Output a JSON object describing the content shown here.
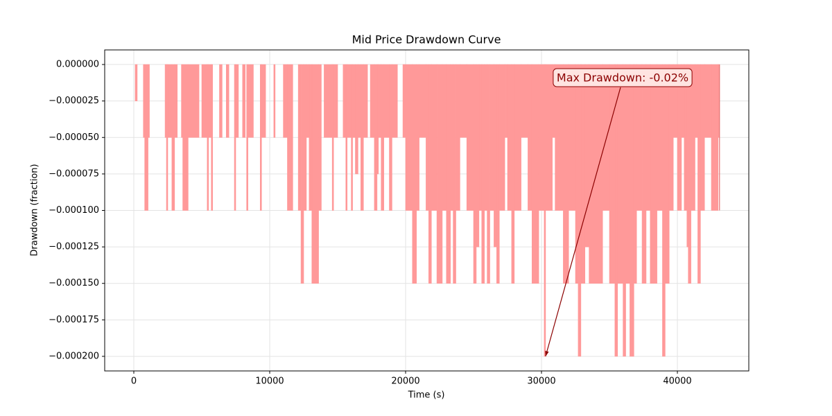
{
  "chart_data": {
    "type": "area",
    "step": "post",
    "title": "Mid Price Drawdown Curve",
    "xlabel": "Time (s)",
    "ylabel": "Drawdown (fraction)",
    "color": "#ff9999",
    "grid": true,
    "xlim": [
      -2143,
      45255
    ],
    "ylim": [
      -0.00021,
      1e-05
    ],
    "xticks": [
      0,
      10000,
      20000,
      30000,
      40000
    ],
    "yticks": [
      {
        "value": 0,
        "label": "0.000000"
      },
      {
        "value": -2.5e-05,
        "label": "−0.000025"
      },
      {
        "value": -5e-05,
        "label": "−0.000050"
      },
      {
        "value": -7.5e-05,
        "label": "−0.000075"
      },
      {
        "value": -0.0001,
        "label": "−0.000100"
      },
      {
        "value": -0.000125,
        "label": "−0.000125"
      },
      {
        "value": -0.00015,
        "label": "−0.000150"
      },
      {
        "value": -0.000175,
        "label": "−0.000175"
      },
      {
        "value": -0.0002,
        "label": "−0.000200"
      }
    ],
    "annotation": {
      "text": "Max Drawdown: -0.02%",
      "x": 30300,
      "y": -0.0002
    },
    "x": [
      0,
      100,
      250,
      700,
      800,
      1050,
      1150,
      2300,
      2400,
      2500,
      2800,
      3000,
      3200,
      3500,
      3600,
      4000,
      4800,
      5000,
      5400,
      5500,
      5700,
      5800,
      6300,
      6500,
      6800,
      7000,
      7400,
      7500,
      7700,
      8000,
      8200,
      8300,
      8400,
      8800,
      9300,
      9400,
      9700,
      10300,
      10400,
      11000,
      11300,
      11700,
      12100,
      12300,
      12500,
      12700,
      12900,
      13100,
      13600,
      13800,
      14000,
      14600,
      14700,
      15000,
      15400,
      15600,
      15700,
      16000,
      16100,
      16300,
      16500,
      16700,
      16900,
      17200,
      17400,
      17700,
      17900,
      18000,
      18200,
      18400,
      18800,
      19000,
      19400,
      19800,
      20000,
      20500,
      20800,
      21000,
      21500,
      21700,
      21900,
      22300,
      22700,
      23000,
      23300,
      23500,
      23700,
      24000,
      24500,
      25000,
      25200,
      25400,
      25600,
      25800,
      26000,
      26200,
      26500,
      26700,
      26900,
      27300,
      27500,
      27800,
      28000,
      28500,
      29000,
      29300,
      29800,
      30200,
      30300,
      30800,
      31000,
      31600,
      32000,
      32500,
      32700,
      32900,
      33200,
      33500,
      34500,
      35000,
      35400,
      35600,
      36000,
      36200,
      36500,
      36800,
      37000,
      37400,
      37700,
      38000,
      38500,
      38900,
      39100,
      39400,
      39700,
      40000,
      40300,
      40500,
      40700,
      40800,
      41000,
      41300,
      41500,
      41700,
      42000,
      42500,
      43000,
      43100
    ],
    "values": [
      0,
      -2.5e-05,
      0,
      -5e-05,
      -0.0001,
      -5e-05,
      0,
      -5e-05,
      -0.0001,
      -5e-05,
      -0.0001,
      -5e-05,
      0,
      -5e-05,
      -0.0001,
      -5e-05,
      0,
      -5e-05,
      -0.0001,
      -5e-05,
      -0.0001,
      0,
      -5e-05,
      0,
      -5e-05,
      0,
      -0.0001,
      -5e-05,
      0,
      -5e-05,
      0,
      -0.0001,
      -5e-05,
      0,
      -0.0001,
      -5e-05,
      0,
      -5e-05,
      0,
      -5e-05,
      -0.0001,
      0,
      -0.0001,
      -0.00015,
      -0.0001,
      -5e-05,
      -0.0001,
      -0.00015,
      -0.0001,
      0,
      -5e-05,
      -0.0001,
      -5e-05,
      0,
      -5e-05,
      -0.0001,
      -5e-05,
      -0.0001,
      -5e-05,
      -7.5e-05,
      -5e-05,
      -0.0001,
      -5e-05,
      0,
      -5e-05,
      -0.0001,
      -7.5e-05,
      -5e-05,
      -0.0001,
      -5e-05,
      -0.0001,
      -5e-05,
      0,
      -5e-05,
      -0.0001,
      -0.00015,
      -0.0001,
      -5e-05,
      -0.0001,
      -0.00015,
      -0.0001,
      -0.00015,
      -0.0001,
      -0.00015,
      -0.0001,
      -0.00015,
      -0.0001,
      -5e-05,
      -0.0001,
      -0.00015,
      -0.000125,
      -0.0001,
      -0.00015,
      -0.0001,
      -0.00015,
      -0.0001,
      -0.000125,
      -0.00015,
      -0.0001,
      -5e-05,
      -0.0001,
      -0.00015,
      -0.0001,
      -5e-05,
      -0.0001,
      -0.00015,
      -0.0001,
      -0.0002,
      -0.0001,
      -5e-05,
      -0.0001,
      -0.00015,
      -0.0001,
      -0.00015,
      -0.0002,
      -0.00015,
      -0.000125,
      -0.00015,
      -0.0001,
      -0.00015,
      -0.0002,
      -0.00015,
      -0.0002,
      -0.00015,
      -0.0002,
      -0.00015,
      -0.0001,
      -0.00015,
      -0.0001,
      -0.00015,
      -0.0001,
      -0.0002,
      -0.00015,
      -0.0001,
      -5e-05,
      -0.0001,
      -5e-05,
      -0.0001,
      -0.000125,
      -0.00015,
      -0.0001,
      -5e-05,
      -0.00015,
      -0.0001,
      -5e-05,
      -0.0001,
      -5e-05,
      -0.0001
    ]
  }
}
